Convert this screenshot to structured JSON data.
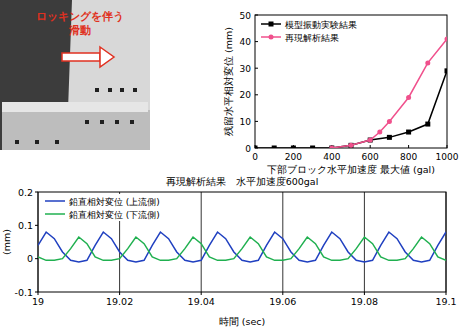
{
  "photo": {
    "annotation": [
      "ロッキングを伴う",
      "滑動"
    ]
  },
  "chart_data": [
    {
      "type": "line",
      "x_label": "下部ブロック水平加速度 最大値 (gal)",
      "y_label": "残留水平相対変位 (mm)",
      "xlim": [
        0,
        1000
      ],
      "xticks": [
        0,
        200,
        400,
        600,
        800,
        1000
      ],
      "ylim": [
        0,
        50
      ],
      "yticks": [
        0,
        10,
        20,
        30,
        40,
        50
      ],
      "grid": false,
      "legend": "upper left",
      "series": [
        {
          "name": "模型振動実験結果",
          "color": "#000000",
          "marker": "square",
          "line_style": "solid",
          "x": [
            0,
            100,
            200,
            300,
            400,
            500,
            600,
            700,
            800,
            900,
            1000
          ],
          "values": [
            0,
            0,
            0,
            0,
            0,
            1,
            3,
            4,
            6,
            9,
            29
          ]
        },
        {
          "name": "再現解析結果",
          "color": "#f0508c",
          "marker": "circle",
          "line_style": "solid",
          "x": [
            400,
            500,
            600,
            650,
            700,
            800,
            900,
            1000
          ],
          "values": [
            0,
            1,
            3,
            6,
            10,
            19,
            32,
            41
          ]
        }
      ]
    },
    {
      "type": "line",
      "title": "再現解析結果　水平加速度600gal",
      "x_label": "時間 (sec)",
      "y_label": "(mm)",
      "xlim": [
        19,
        19.1
      ],
      "xticks": [
        19,
        19.02,
        19.04,
        19.06,
        19.08,
        19.1
      ],
      "ylim": [
        -0.1,
        0.2
      ],
      "yticks": [
        -0.1,
        0,
        0.1,
        0.2
      ],
      "grid": true,
      "legend": "upper left",
      "x": [
        19,
        19.002,
        19.004,
        19.006,
        19.008,
        19.01,
        19.012,
        19.014,
        19.016,
        19.018,
        19.02,
        19.022,
        19.024,
        19.026,
        19.028,
        19.03,
        19.032,
        19.034,
        19.036,
        19.038,
        19.04,
        19.042,
        19.044,
        19.046,
        19.048,
        19.05,
        19.052,
        19.054,
        19.056,
        19.058,
        19.06,
        19.062,
        19.064,
        19.066,
        19.068,
        19.07,
        19.072,
        19.074,
        19.076,
        19.078,
        19.08,
        19.082,
        19.084,
        19.086,
        19.088,
        19.09,
        19.092,
        19.094,
        19.096,
        19.098,
        19.1
      ],
      "series": [
        {
          "name": "鉛直相対変位 (上流側)",
          "color": "#2040c0",
          "marker": "none",
          "line_style": "solid",
          "values": [
            0.04,
            0.08,
            0.06,
            0.02,
            -0.005,
            -0.01,
            -0.005,
            0.04,
            0.08,
            0.06,
            0.02,
            -0.005,
            -0.01,
            -0.005,
            0.04,
            0.08,
            0.06,
            0.02,
            -0.005,
            -0.01,
            -0.005,
            0.04,
            0.08,
            0.06,
            0.02,
            -0.005,
            -0.01,
            -0.005,
            0.04,
            0.08,
            0.06,
            0.02,
            -0.005,
            -0.01,
            -0.005,
            0.04,
            0.08,
            0.06,
            0.02,
            -0.005,
            -0.01,
            -0.005,
            0.04,
            0.08,
            0.06,
            0.02,
            -0.005,
            -0.01,
            -0.005,
            0.04,
            0.08
          ]
        },
        {
          "name": "鉛直相対変位 (下流側)",
          "color": "#20b050",
          "marker": "none",
          "line_style": "solid",
          "values": [
            0.005,
            -0.005,
            -0.005,
            0,
            0.03,
            0.065,
            0.045,
            0.005,
            -0.005,
            -0.005,
            0,
            0.03,
            0.065,
            0.045,
            0.005,
            -0.005,
            -0.005,
            0,
            0.03,
            0.065,
            0.045,
            0.005,
            -0.005,
            -0.005,
            0,
            0.03,
            0.065,
            0.045,
            0.005,
            -0.005,
            -0.005,
            0,
            0.03,
            0.065,
            0.045,
            0.005,
            -0.005,
            -0.005,
            0,
            0.03,
            0.065,
            0.045,
            0.005,
            -0.005,
            -0.005,
            0,
            0.03,
            0.065,
            0.045,
            0.005,
            -0.005
          ]
        }
      ]
    }
  ]
}
